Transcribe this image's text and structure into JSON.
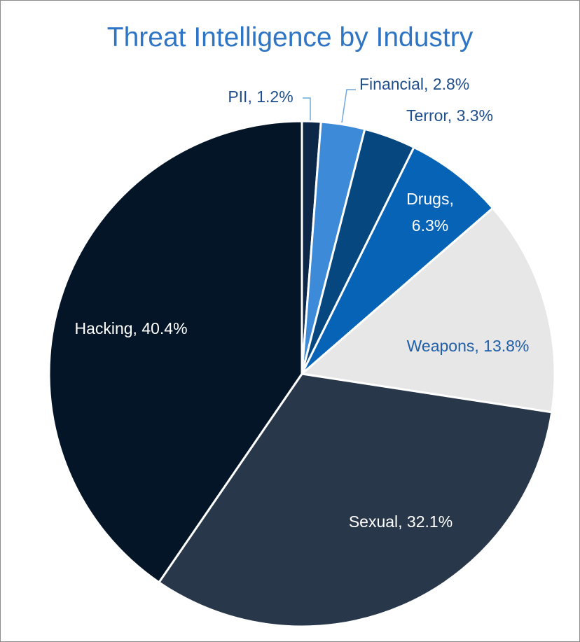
{
  "chart_data": {
    "type": "pie",
    "title": "Threat Intelligence by Industry",
    "slices": [
      {
        "label": "PII",
        "value": 1.2,
        "display": "PII, 1.2%",
        "color": "#0C2747",
        "label_color": "#1F4E8C",
        "label_lines": [
          "PII, 1.2%"
        ]
      },
      {
        "label": "Financial",
        "value": 2.8,
        "display": "Financial, 2.8%",
        "color": "#3C8AD8",
        "label_color": "#1F4E8C",
        "label_lines": [
          "Financial, 2.8%"
        ]
      },
      {
        "label": "Terror",
        "value": 3.3,
        "display": "Terror, 3.3%",
        "color": "#064780",
        "label_color": "#1F4E8C",
        "label_lines": [
          "Terror, 3.3%"
        ]
      },
      {
        "label": "Drugs",
        "value": 6.3,
        "display": "Drugs, 6.3%",
        "color": "#0763B6",
        "label_color": "#FFFFFF",
        "label_lines": [
          "Drugs,",
          "6.3%"
        ]
      },
      {
        "label": "Weapons",
        "value": 13.8,
        "display": "Weapons, 13.8%",
        "color": "#E7E7E7",
        "label_color": "#1F5FA8",
        "label_lines": [
          "Weapons, 13.8%"
        ]
      },
      {
        "label": "Sexual",
        "value": 32.1,
        "display": "Sexual, 32.1%",
        "color": "#28374A",
        "label_color": "#FFFFFF",
        "label_lines": [
          "Sexual, 32.1%"
        ]
      },
      {
        "label": "Hacking",
        "value": 40.4,
        "display": "Hacking, 40.4%",
        "color": "#041528",
        "label_color": "#FFFFFF",
        "label_lines": [
          "Hacking, 40.4%"
        ]
      }
    ],
    "leader_color": "#6FA8DC",
    "legend": "none"
  }
}
